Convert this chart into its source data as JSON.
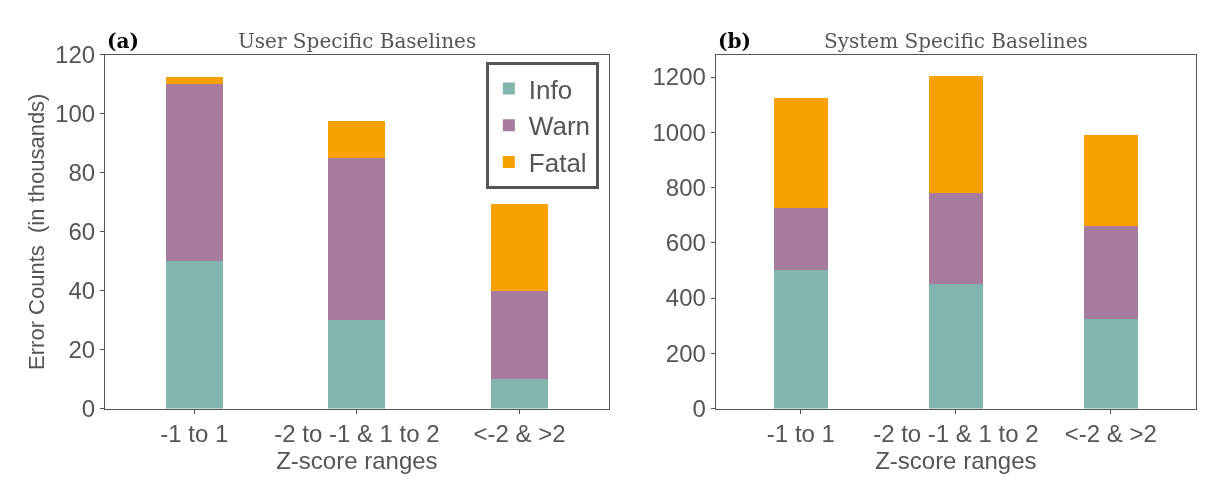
{
  "chart_data": [
    {
      "type": "bar",
      "stacked": true,
      "title": "User Specific Baselines",
      "annotations": [
        "(a)"
      ],
      "xlabel": "Z-score ranges",
      "ylabel": "Error Counts  (in thousands)",
      "categories": [
        "-1 to 1",
        "-2 to -1 & 1 to 2",
        "<-2 & >2"
      ],
      "series": [
        {
          "name": "Info",
          "color": "#82b5ae",
          "values": [
            50,
            30,
            10
          ]
        },
        {
          "name": "Warn",
          "color": "#a67b9d",
          "values": [
            60,
            55,
            30
          ]
        },
        {
          "name": "Fatal",
          "color": "#f9a100",
          "values": [
            2.5,
            12.5,
            29.5
          ]
        }
      ],
      "ylim": [
        0,
        120
      ],
      "yticks": [
        0,
        20,
        40,
        60,
        80,
        100,
        120
      ],
      "legend": "top right"
    },
    {
      "type": "bar",
      "stacked": true,
      "title": "System Specific Baselines",
      "annotations": [
        "(b)"
      ],
      "xlabel": "Z-score ranges",
      "categories": [
        "-1 to 1",
        "-2 to -1 & 1 to 2",
        "<-2 & >2"
      ],
      "series": [
        {
          "color": "#82b5ae",
          "values": [
            500,
            450,
            325
          ]
        },
        {
          "color": "#a67b9d",
          "values": [
            225,
            330,
            335
          ]
        },
        {
          "color": "#f9a100",
          "values": [
            400,
            425,
            330
          ]
        }
      ],
      "ylim": [
        0,
        1280
      ],
      "yticks": [
        0,
        200,
        400,
        600,
        800,
        1000,
        1200
      ],
      "legend": false
    }
  ]
}
